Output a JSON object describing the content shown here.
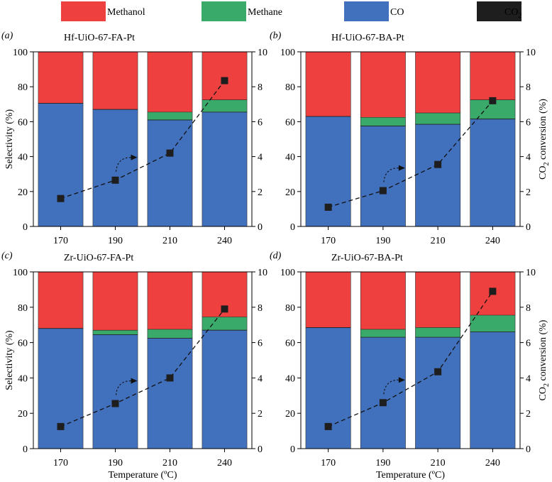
{
  "legend": {
    "items": [
      {
        "key": "methanol",
        "label": "Methanol",
        "color": "#ef4040"
      },
      {
        "key": "methane",
        "label": "Methane",
        "color": "#3aaa6a"
      },
      {
        "key": "co",
        "label": "CO",
        "color": "#4170bd"
      },
      {
        "key": "co2",
        "label": "CO",
        "sub": "2",
        "color": "#1e1e1e"
      }
    ]
  },
  "axes": {
    "left_label": "Selectivity (%)",
    "right_label_prefix": "CO",
    "right_label_sub": "2",
    "right_label_suffix": " conversion (%)",
    "x_label": "Temperature (ºC)"
  },
  "chart_data": [
    {
      "type": "bar",
      "panel": "(a)",
      "title": "Hf-UiO-67-FA-Pt",
      "categories": [
        "170",
        "190",
        "210",
        "240"
      ],
      "series": [
        {
          "name": "CO",
          "values": [
            70.5,
            67.0,
            61.0,
            65.5
          ]
        },
        {
          "name": "Methane",
          "values": [
            0,
            0,
            4.5,
            7.0
          ]
        },
        {
          "name": "Methanol",
          "values": [
            29.5,
            33.0,
            34.5,
            27.5
          ]
        }
      ],
      "conversion": {
        "name": "CO2",
        "values": [
          1.6,
          2.65,
          4.2,
          8.35
        ]
      },
      "ylim": [
        0,
        100
      ],
      "yticks": [
        "0",
        "20",
        "40",
        "60",
        "80",
        "100"
      ],
      "y2lim": [
        0,
        10
      ],
      "y2ticks": [
        "0",
        "2",
        "4",
        "6",
        "8",
        "10"
      ]
    },
    {
      "type": "bar",
      "panel": "(b)",
      "title": "Hf-UiO-67-BA-Pt",
      "categories": [
        "170",
        "190",
        "210",
        "240"
      ],
      "series": [
        {
          "name": "CO",
          "values": [
            63.0,
            57.5,
            58.5,
            61.5
          ]
        },
        {
          "name": "Methane",
          "values": [
            0,
            5.0,
            6.5,
            11.0
          ]
        },
        {
          "name": "Methanol",
          "values": [
            37.0,
            37.5,
            35.0,
            27.5
          ]
        }
      ],
      "conversion": {
        "name": "CO2",
        "values": [
          1.1,
          2.05,
          3.55,
          7.2
        ]
      },
      "ylim": [
        0,
        100
      ],
      "yticks": [
        "0",
        "20",
        "40",
        "60",
        "80",
        "100"
      ],
      "y2lim": [
        0,
        10
      ],
      "y2ticks": [
        "0",
        "2",
        "4",
        "6",
        "8",
        "10"
      ]
    },
    {
      "type": "bar",
      "panel": "(c)",
      "title": "Zr-UiO-67-FA-Pt",
      "categories": [
        "170",
        "190",
        "210",
        "240"
      ],
      "series": [
        {
          "name": "CO",
          "values": [
            68.0,
            64.5,
            62.5,
            67.0
          ]
        },
        {
          "name": "Methane",
          "values": [
            0,
            2.5,
            5.0,
            7.5
          ]
        },
        {
          "name": "Methanol",
          "values": [
            32.0,
            33.0,
            32.5,
            25.5
          ]
        }
      ],
      "conversion": {
        "name": "CO2",
        "values": [
          1.25,
          2.55,
          4.0,
          7.9
        ]
      },
      "ylim": [
        0,
        100
      ],
      "yticks": [
        "0",
        "20",
        "40",
        "60",
        "80",
        "100"
      ],
      "y2lim": [
        0,
        10
      ],
      "y2ticks": [
        "0",
        "2",
        "4",
        "6",
        "8",
        "10"
      ]
    },
    {
      "type": "bar",
      "panel": "(d)",
      "title": "Zr-UiO-67-BA-Pt",
      "categories": [
        "170",
        "190",
        "210",
        "240"
      ],
      "series": [
        {
          "name": "CO",
          "values": [
            68.5,
            63.0,
            63.0,
            66.0
          ]
        },
        {
          "name": "Methane",
          "values": [
            0,
            4.5,
            5.5,
            9.5
          ]
        },
        {
          "name": "Methanol",
          "values": [
            31.5,
            32.5,
            31.5,
            24.5
          ]
        }
      ],
      "conversion": {
        "name": "CO2",
        "values": [
          1.25,
          2.6,
          4.35,
          8.9
        ]
      },
      "ylim": [
        0,
        100
      ],
      "yticks": [
        "0",
        "20",
        "40",
        "60",
        "80",
        "100"
      ],
      "y2lim": [
        0,
        10
      ],
      "y2ticks": [
        "0",
        "2",
        "4",
        "6",
        "8",
        "10"
      ]
    }
  ]
}
